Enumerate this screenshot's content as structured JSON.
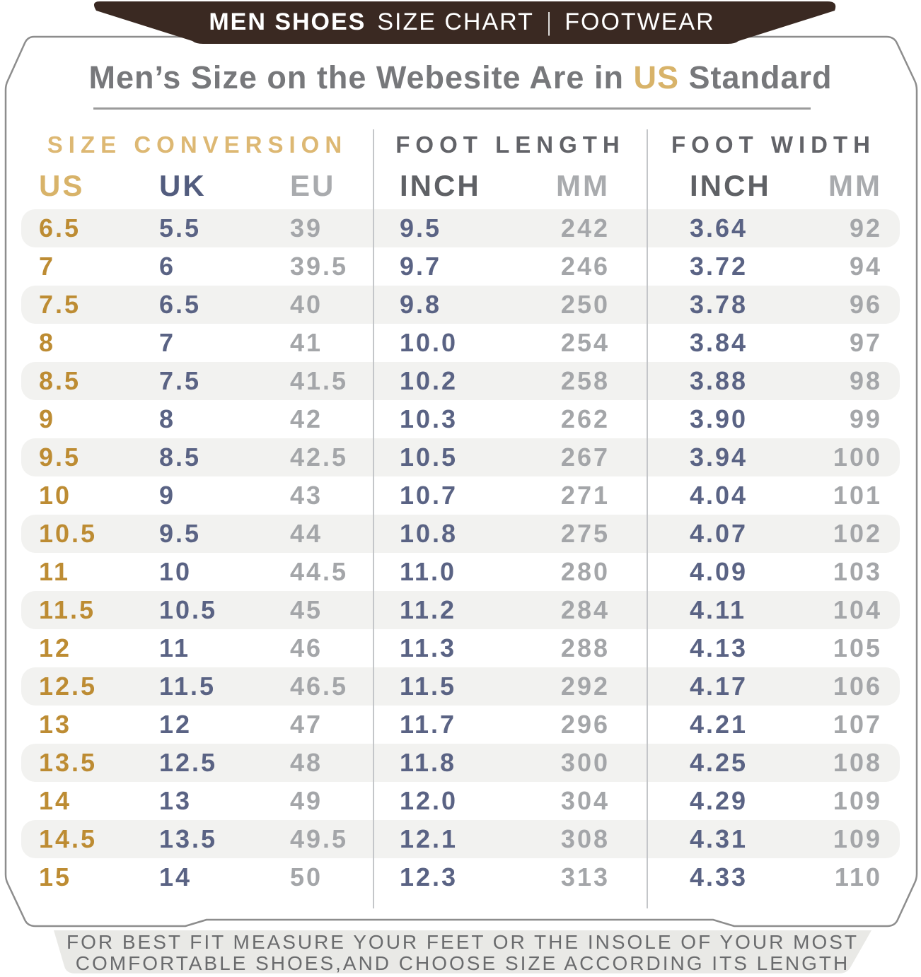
{
  "banner": {
    "title_bold": "MEN SHOES",
    "title_regular": "SIZE CHART",
    "separator": "|",
    "right": "FOOTWEAR"
  },
  "heading": {
    "prefix": "Men’s Size on the Webesite Are in",
    "highlight": "US",
    "suffix": "Standard"
  },
  "footer": {
    "line1": "FOR BEST FIT MEASURE YOUR FEET OR THE INSOLE OF YOUR MOST",
    "line2": "COMFORTABLE SHOES,AND CHOOSE SIZE ACCORDING ITS LENGTH"
  },
  "colors": {
    "banner_brown": "#3a2922",
    "accent_gold": "#bd8c33",
    "accent_gold_light": "#d8b369",
    "navy": "#5a6384",
    "gray_value": "#a4a6a9",
    "stripe": "#f2f2f0",
    "footer_bg": "#e9e9e6"
  },
  "chart_data": {
    "type": "table",
    "title": "Men Shoes Size Chart",
    "sections": [
      {
        "label": "SIZE CONVERSION",
        "columns": [
          "US",
          "UK",
          "EU"
        ]
      },
      {
        "label": "FOOT LENGTH",
        "columns": [
          "INCH",
          "MM"
        ]
      },
      {
        "label": "FOOT WIDTH",
        "columns": [
          "INCH",
          "MM"
        ]
      }
    ],
    "columns": [
      "US",
      "UK",
      "EU",
      "INCH",
      "MM",
      "INCH",
      "MM"
    ],
    "rows": [
      [
        "6.5",
        "5.5",
        "39",
        "9.5",
        "242",
        "3.64",
        "92"
      ],
      [
        "7",
        "6",
        "39.5",
        "9.7",
        "246",
        "3.72",
        "94"
      ],
      [
        "7.5",
        "6.5",
        "40",
        "9.8",
        "250",
        "3.78",
        "96"
      ],
      [
        "8",
        "7",
        "41",
        "10.0",
        "254",
        "3.84",
        "97"
      ],
      [
        "8.5",
        "7.5",
        "41.5",
        "10.2",
        "258",
        "3.88",
        "98"
      ],
      [
        "9",
        "8",
        "42",
        "10.3",
        "262",
        "3.90",
        "99"
      ],
      [
        "9.5",
        "8.5",
        "42.5",
        "10.5",
        "267",
        "3.94",
        "100"
      ],
      [
        "10",
        "9",
        "43",
        "10.7",
        "271",
        "4.04",
        "101"
      ],
      [
        "10.5",
        "9.5",
        "44",
        "10.8",
        "275",
        "4.07",
        "102"
      ],
      [
        "11",
        "10",
        "44.5",
        "11.0",
        "280",
        "4.09",
        "103"
      ],
      [
        "11.5",
        "10.5",
        "45",
        "11.2",
        "284",
        "4.11",
        "104"
      ],
      [
        "12",
        "11",
        "46",
        "11.3",
        "288",
        "4.13",
        "105"
      ],
      [
        "12.5",
        "11.5",
        "46.5",
        "11.5",
        "292",
        "4.17",
        "106"
      ],
      [
        "13",
        "12",
        "47",
        "11.7",
        "296",
        "4.21",
        "107"
      ],
      [
        "13.5",
        "12.5",
        "48",
        "11.8",
        "300",
        "4.25",
        "108"
      ],
      [
        "14",
        "13",
        "49",
        "12.0",
        "304",
        "4.29",
        "109"
      ],
      [
        "14.5",
        "13.5",
        "49.5",
        "12.1",
        "308",
        "4.31",
        "109"
      ],
      [
        "15",
        "14",
        "50",
        "12.3",
        "313",
        "4.33",
        "110"
      ]
    ]
  }
}
